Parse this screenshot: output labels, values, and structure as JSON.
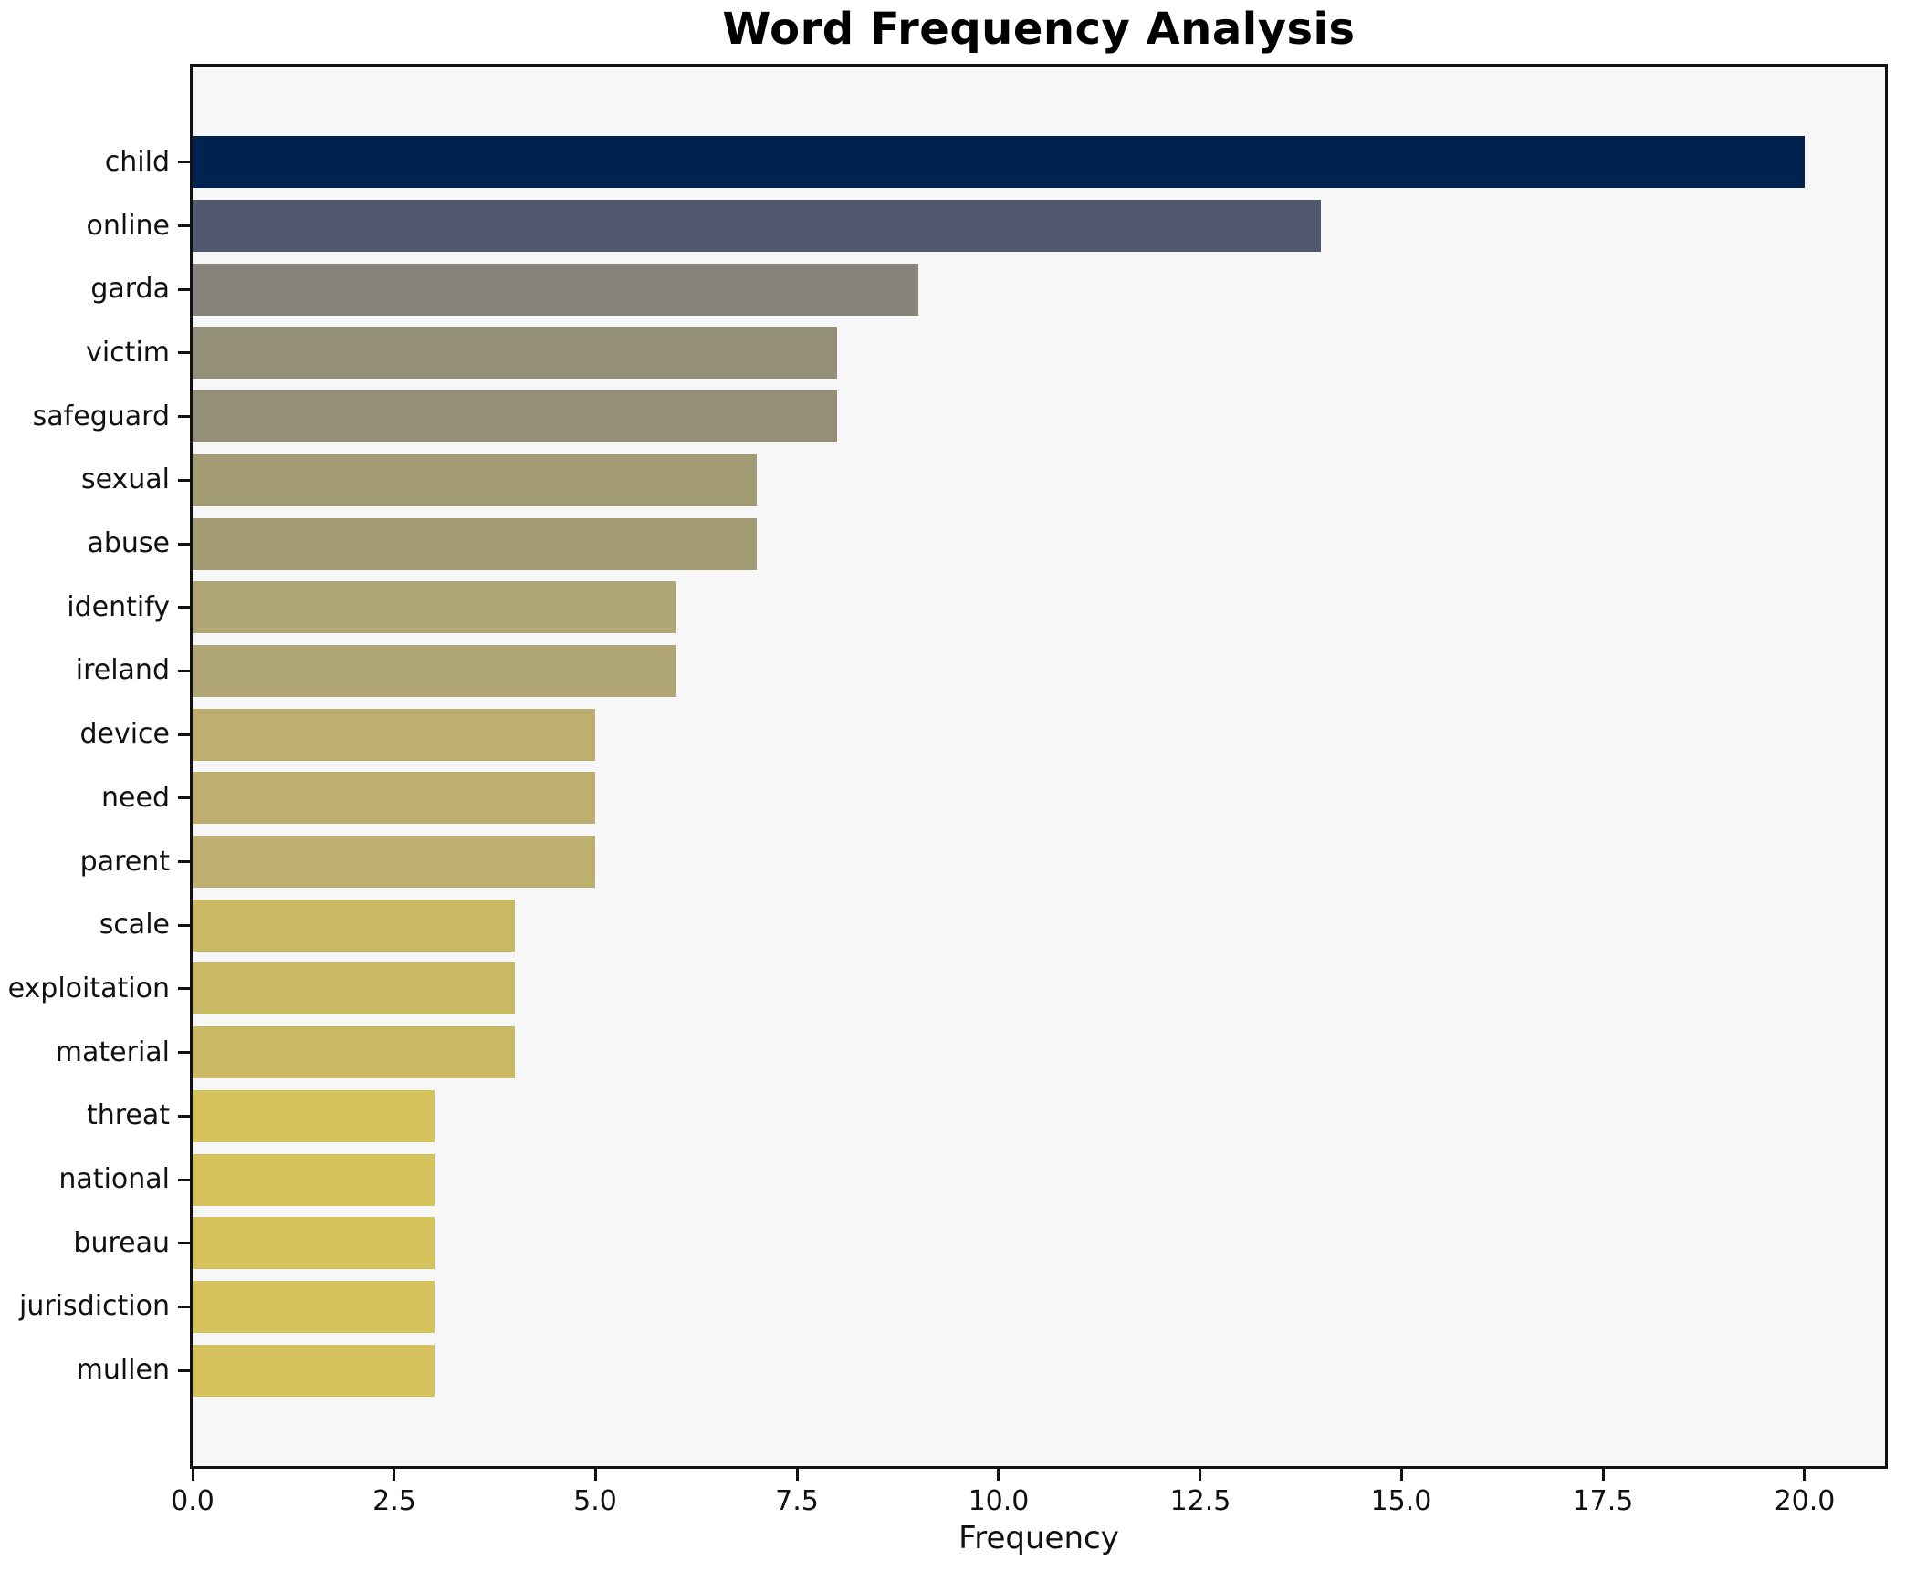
{
  "chart_data": {
    "type": "bar",
    "orientation": "horizontal",
    "title": "Word Frequency Analysis",
    "xlabel": "Frequency",
    "ylabel": "",
    "categories": [
      "child",
      "online",
      "garda",
      "victim",
      "safeguard",
      "sexual",
      "abuse",
      "identify",
      "ireland",
      "device",
      "need",
      "parent",
      "scale",
      "exploitation",
      "material",
      "threat",
      "national",
      "bureau",
      "jurisdiction",
      "mullen"
    ],
    "values": [
      20,
      14,
      9,
      8,
      8,
      7,
      7,
      6,
      6,
      5,
      5,
      5,
      4,
      4,
      4,
      3,
      3,
      3,
      3,
      3
    ],
    "bar_colors": [
      "#00224e",
      "#4f586c",
      "#87837a",
      "#948f78",
      "#948f78",
      "#a29b74",
      "#a29b74",
      "#afa575",
      "#afa575",
      "#bcaf6f",
      "#bcaf6f",
      "#bcaf6f",
      "#cab964",
      "#cab964",
      "#cab964",
      "#d5c25c",
      "#d5c25c",
      "#d5c25c",
      "#d5c25c",
      "#d5c25c"
    ],
    "xlim": [
      0,
      21
    ],
    "xticks": [
      0.0,
      2.5,
      5.0,
      7.5,
      10.0,
      12.5,
      15.0,
      17.5,
      20.0
    ],
    "xtick_labels": [
      "0.0",
      "2.5",
      "5.0",
      "7.5",
      "10.0",
      "12.5",
      "15.0",
      "17.5",
      "20.0"
    ],
    "grid": false,
    "legend": "none",
    "plot_background": "#f7f7f7",
    "figure_background": "#ffffff",
    "spine_color": "#111111",
    "text_color": "#111111"
  }
}
